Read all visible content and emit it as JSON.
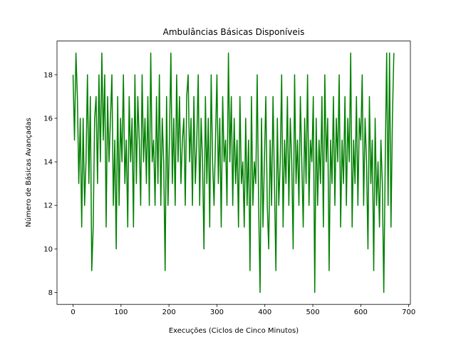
{
  "chart_data": {
    "type": "line",
    "title": "Ambulâncias Básicas Disponíveis",
    "xlabel": "Execuções (Ciclos de Cinco Minutos)",
    "ylabel": "Número de Básicas Avançadas",
    "color": "#008000",
    "x": [
      0,
      3,
      6,
      9,
      12,
      15,
      18,
      21,
      24,
      27,
      30,
      33,
      36,
      39,
      42,
      45,
      48,
      51,
      54,
      57,
      60,
      63,
      66,
      69,
      72,
      75,
      78,
      81,
      84,
      87,
      90,
      93,
      96,
      99,
      102,
      105,
      108,
      111,
      114,
      117,
      120,
      123,
      126,
      129,
      132,
      135,
      138,
      141,
      144,
      147,
      150,
      153,
      156,
      159,
      162,
      165,
      168,
      171,
      174,
      177,
      180,
      183,
      186,
      189,
      192,
      195,
      198,
      201,
      204,
      207,
      210,
      213,
      216,
      219,
      222,
      225,
      228,
      231,
      234,
      237,
      240,
      243,
      246,
      249,
      252,
      255,
      258,
      261,
      264,
      267,
      270,
      273,
      276,
      279,
      282,
      285,
      288,
      291,
      294,
      297,
      300,
      303,
      306,
      309,
      312,
      315,
      318,
      321,
      324,
      327,
      330,
      333,
      336,
      339,
      342,
      345,
      348,
      351,
      354,
      357,
      360,
      363,
      366,
      369,
      372,
      375,
      378,
      381,
      384,
      387,
      390,
      393,
      396,
      399,
      402,
      405,
      408,
      411,
      414,
      417,
      420,
      423,
      426,
      429,
      432,
      435,
      438,
      441,
      444,
      447,
      450,
      453,
      456,
      459,
      462,
      465,
      468,
      471,
      474,
      477,
      480,
      483,
      486,
      489,
      492,
      495,
      498,
      501,
      504,
      507,
      510,
      513,
      516,
      519,
      522,
      525,
      528,
      531,
      534,
      537,
      540,
      543,
      546,
      549,
      552,
      555,
      558,
      561,
      564,
      567,
      570,
      573,
      576,
      579,
      582,
      585,
      588,
      591,
      594,
      597,
      600,
      603,
      606,
      609,
      612,
      615,
      618,
      621,
      624,
      627,
      630,
      633,
      636,
      639,
      642,
      645,
      648,
      651,
      654,
      657,
      660,
      663,
      666,
      669
    ],
    "values": [
      18,
      15,
      19,
      17,
      13,
      16,
      11,
      16,
      12,
      14,
      18,
      13,
      17,
      9,
      11,
      16,
      17,
      13,
      18,
      14,
      19,
      15,
      18,
      11,
      17,
      14,
      16,
      18,
      12,
      15,
      10,
      17,
      12,
      16,
      14,
      18,
      13,
      15,
      11,
      17,
      14,
      16,
      11,
      18,
      13,
      17,
      15,
      12,
      18,
      14,
      16,
      13,
      17,
      12,
      19,
      14,
      15,
      12,
      17,
      13,
      18,
      12,
      16,
      14,
      9,
      17,
      12,
      15,
      19,
      13,
      16,
      12,
      18,
      14,
      17,
      13,
      15,
      16,
      12,
      17,
      18,
      14,
      16,
      12,
      17,
      13,
      15,
      18,
      12,
      16,
      14,
      10,
      17,
      13,
      16,
      11,
      18,
      14,
      12,
      15,
      18,
      13,
      16,
      11,
      17,
      14,
      15,
      12,
      19,
      14,
      17,
      12,
      16,
      13,
      15,
      11,
      17,
      13,
      14,
      11,
      16,
      12,
      15,
      9,
      17,
      12,
      14,
      13,
      18,
      12,
      8,
      16,
      11,
      14,
      17,
      12,
      10,
      15,
      12,
      17,
      13,
      9,
      16,
      12,
      14,
      18,
      11,
      15,
      13,
      17,
      12,
      16,
      14,
      10,
      18,
      13,
      15,
      12,
      17,
      14,
      11,
      16,
      13,
      18,
      12,
      15,
      14,
      17,
      8,
      16,
      12,
      15,
      13,
      17,
      11,
      18,
      14,
      16,
      9,
      15,
      13,
      17,
      12,
      16,
      14,
      18,
      11,
      15,
      13,
      17,
      12,
      16,
      14,
      19,
      11,
      15,
      13,
      17,
      12,
      16,
      15,
      18,
      12,
      16,
      14,
      10,
      17,
      13,
      15,
      9,
      16,
      12,
      14,
      11,
      15,
      13,
      8,
      14,
      19,
      12,
      19,
      11,
      16,
      19
    ],
    "xlim": [
      -33.5,
      703.5
    ],
    "xticks": [
      0,
      100,
      200,
      300,
      400,
      500,
      600,
      700
    ],
    "ylim": [
      7.45,
      19.55
    ],
    "yticks": [
      8,
      10,
      12,
      14,
      16,
      18
    ]
  }
}
